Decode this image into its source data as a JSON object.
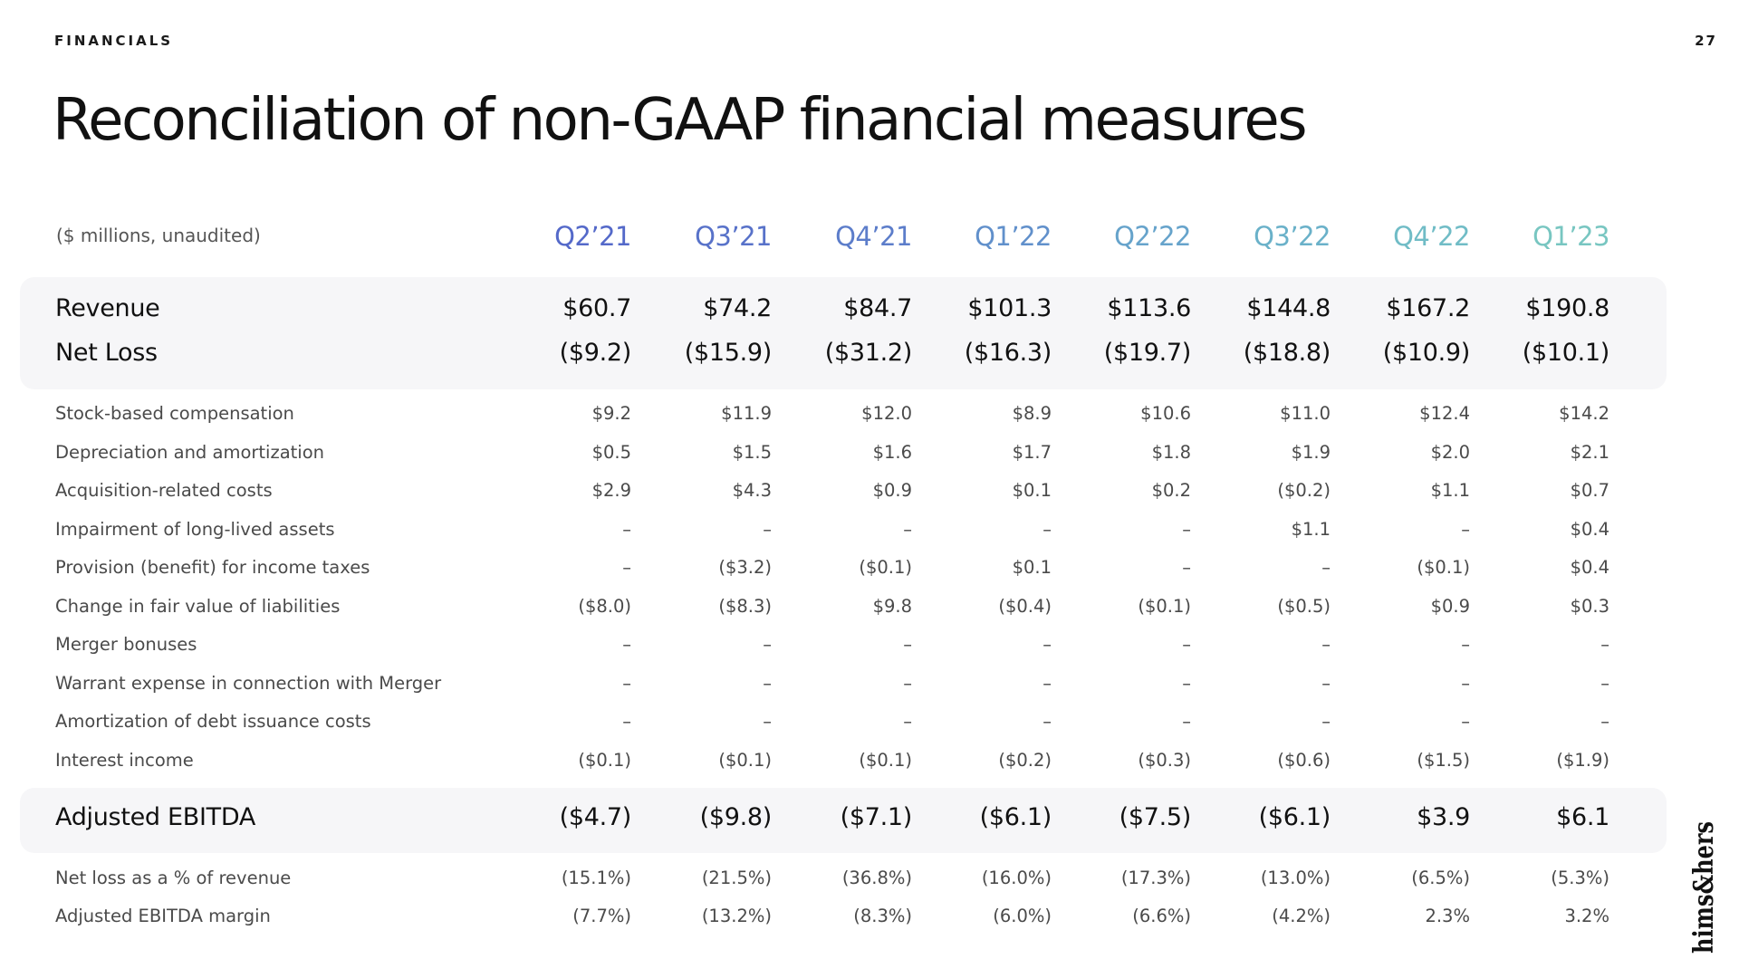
{
  "header": {
    "section": "FINANCIALS",
    "page_number": "27",
    "title": "Reconciliation of non-GAAP financial measures"
  },
  "table": {
    "units": "($ millions, unaudited)",
    "quarters": [
      {
        "label": "Q2’21",
        "color": "#5469c9"
      },
      {
        "label": "Q3’21",
        "color": "#5872c9"
      },
      {
        "label": "Q4’21",
        "color": "#5c7dca"
      },
      {
        "label": "Q1’22",
        "color": "#6190cb"
      },
      {
        "label": "Q2’22",
        "color": "#66a3cb"
      },
      {
        "label": "Q3’22",
        "color": "#6ab1c9"
      },
      {
        "label": "Q4’22",
        "color": "#70bcc6"
      },
      {
        "label": "Q1’23",
        "color": "#78c6c1"
      }
    ],
    "summary_rows": [
      {
        "label": "Revenue",
        "values": [
          "$60.7",
          "$74.2",
          "$84.7",
          "$101.3",
          "$113.6",
          "$144.8",
          "$167.2",
          "$190.8"
        ]
      },
      {
        "label": "Net Loss",
        "values": [
          "($9.2)",
          "($15.9)",
          "($31.2)",
          "($16.3)",
          "($19.7)",
          "($18.8)",
          "($10.9)",
          "($10.1)"
        ]
      }
    ],
    "adjustment_rows": [
      {
        "label": "Stock-based compensation",
        "values": [
          "$9.2",
          "$11.9",
          "$12.0",
          "$8.9",
          "$10.6",
          "$11.0",
          "$12.4",
          "$14.2"
        ]
      },
      {
        "label": "Depreciation and amortization",
        "values": [
          "$0.5",
          "$1.5",
          "$1.6",
          "$1.7",
          "$1.8",
          "$1.9",
          "$2.0",
          "$2.1"
        ]
      },
      {
        "label": "Acquisition-related costs",
        "values": [
          "$2.9",
          "$4.3",
          "$0.9",
          "$0.1",
          "$0.2",
          "($0.2)",
          "$1.1",
          "$0.7"
        ]
      },
      {
        "label": "Impairment of long-lived assets",
        "values": [
          "–",
          "–",
          "–",
          "–",
          "–",
          "$1.1",
          "–",
          "$0.4"
        ]
      },
      {
        "label": "Provision (benefit) for income taxes",
        "values": [
          "–",
          "($3.2)",
          "($0.1)",
          "$0.1",
          "–",
          "–",
          "($0.1)",
          "$0.4"
        ]
      },
      {
        "label": "Change in fair value of liabilities",
        "values": [
          "($8.0)",
          "($8.3)",
          "$9.8",
          "($0.4)",
          "($0.1)",
          "($0.5)",
          "$0.9",
          "$0.3"
        ]
      },
      {
        "label": "Merger bonuses",
        "values": [
          "–",
          "–",
          "–",
          "–",
          "–",
          "–",
          "–",
          "–"
        ]
      },
      {
        "label": "Warrant expense in connection with Merger",
        "values": [
          "–",
          "–",
          "–",
          "–",
          "–",
          "–",
          "–",
          "–"
        ]
      },
      {
        "label": "Amortization of debt issuance costs",
        "values": [
          "–",
          "–",
          "–",
          "–",
          "–",
          "–",
          "–",
          "–"
        ]
      },
      {
        "label": "Interest income",
        "values": [
          "($0.1)",
          "($0.1)",
          "($0.1)",
          "($0.2)",
          "($0.3)",
          "($0.6)",
          "($1.5)",
          "($1.9)"
        ]
      }
    ],
    "ebitda_row": {
      "label": "Adjusted EBITDA",
      "values": [
        "($4.7)",
        "($9.8)",
        "($7.1)",
        "($6.1)",
        "($7.5)",
        "($6.1)",
        "$3.9",
        "$6.1"
      ]
    },
    "margin_rows": [
      {
        "label": "Net loss as a % of revenue",
        "values": [
          "(15.1%)",
          "(21.5%)",
          "(36.8%)",
          "(16.0%)",
          "(17.3%)",
          "(13.0%)",
          "(6.5%)",
          "(5.3%)"
        ]
      },
      {
        "label": "Adjusted EBITDA margin",
        "values": [
          "(7.7%)",
          "(13.2%)",
          "(8.3%)",
          "(6.0%)",
          "(6.6%)",
          "(4.2%)",
          "2.3%",
          "3.2%"
        ]
      }
    ]
  },
  "logo": {
    "text": "hims&hers",
    "icon": "hims-and-hers-logo"
  }
}
